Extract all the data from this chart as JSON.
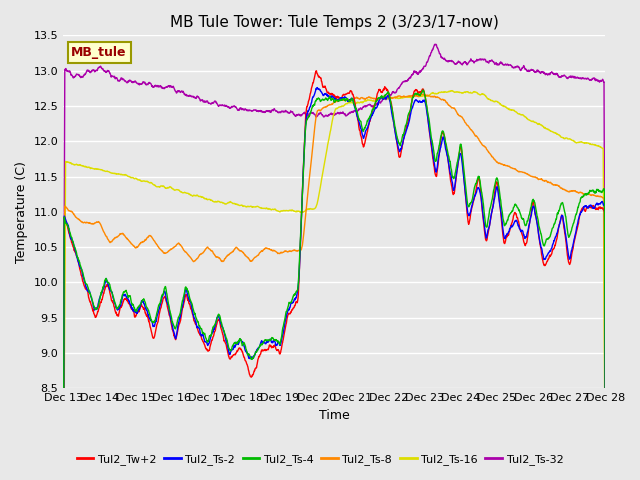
{
  "title": "MB Tule Tower: Tule Temps 2 (3/23/17-now)",
  "xlabel": "Time",
  "ylabel": "Temperature (C)",
  "ylim": [
    8.5,
    13.5
  ],
  "xlim": [
    0,
    15
  ],
  "tick_labels": [
    "Dec 13",
    "Dec 14",
    "Dec 15",
    "Dec 16",
    "Dec 17",
    "Dec 18",
    "Dec 19",
    "Dec 20",
    "Dec 21",
    "Dec 22",
    "Dec 23",
    "Dec 24",
    "Dec 25",
    "Dec 26",
    "Dec 27",
    "Dec 28"
  ],
  "series_colors": {
    "Tul2_Tw+2": "#ff0000",
    "Tul2_Ts-2": "#0000ff",
    "Tul2_Ts-4": "#00bb00",
    "Tul2_Ts-8": "#ff8800",
    "Tul2_Ts-16": "#dddd00",
    "Tul2_Ts-32": "#aa00aa"
  },
  "legend_box_color": "#ffffcc",
  "legend_box_border": "#999900",
  "legend_box_text": "MB_tule",
  "legend_text_color": "#990000",
  "background_color": "#e8e8e8",
  "plot_background": "#e8e8e8",
  "grid_color": "#ffffff",
  "title_fontsize": 11,
  "axis_fontsize": 9,
  "tick_fontsize": 8
}
